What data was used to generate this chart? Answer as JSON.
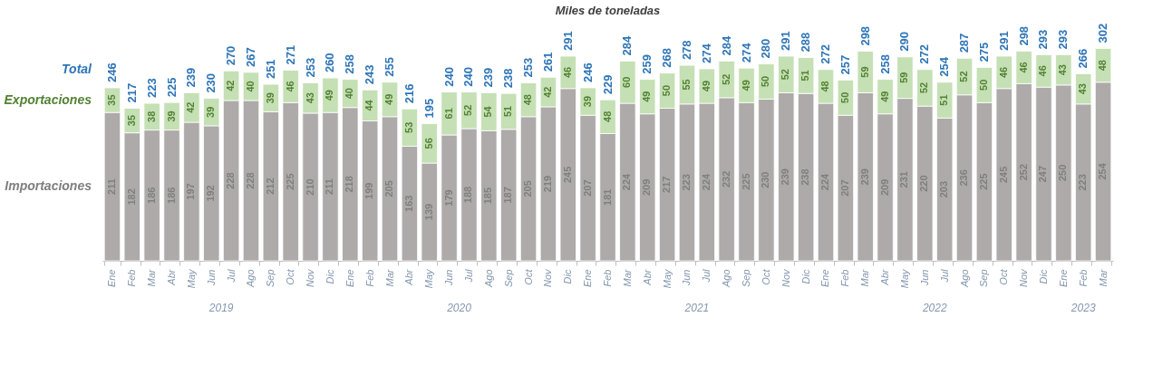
{
  "chart_data": {
    "type": "bar",
    "title": "Miles de toneladas",
    "stacked": true,
    "data_labels": true,
    "legend": "left",
    "grid": false,
    "categories": [
      "Ene",
      "Feb",
      "Mar",
      "Abr",
      "May",
      "Jun",
      "Jul",
      "Ago",
      "Sep",
      "Oct",
      "Nov",
      "Dic",
      "Ene",
      "Feb",
      "Mar",
      "Abr",
      "May",
      "Jun",
      "Jul",
      "Ago",
      "Sep",
      "Oct",
      "Nov",
      "Dic",
      "Ene",
      "Feb",
      "Mar",
      "Abr",
      "May",
      "Jun",
      "Jul",
      "Ago",
      "Sep",
      "Oct",
      "Nov",
      "Dic",
      "Ene",
      "Feb",
      "Mar",
      "Abr",
      "May",
      "Jun",
      "Jul",
      "Ago",
      "Sep",
      "Oct",
      "Nov",
      "Dic",
      "Ene",
      "Feb",
      "Mar"
    ],
    "series": [
      {
        "name": "Importaciones",
        "color": "#aeaaaa",
        "values": [
          211,
          182,
          186,
          186,
          197,
          192,
          228,
          228,
          212,
          225,
          210,
          211,
          218,
          199,
          205,
          163,
          139,
          179,
          188,
          185,
          187,
          205,
          219,
          245,
          207,
          181,
          224,
          209,
          217,
          223,
          224,
          232,
          225,
          230,
          239,
          238,
          224,
          207,
          239,
          209,
          231,
          220,
          203,
          236,
          225,
          245,
          252,
          247,
          250,
          223,
          254
        ]
      },
      {
        "name": "Exportaciones",
        "color": "#c5e0b4",
        "values": [
          35,
          35,
          38,
          39,
          42,
          39,
          42,
          40,
          39,
          46,
          43,
          49,
          40,
          44,
          49,
          53,
          56,
          61,
          52,
          54,
          51,
          48,
          42,
          46,
          39,
          48,
          60,
          49,
          50,
          55,
          49,
          52,
          49,
          50,
          52,
          51,
          48,
          50,
          59,
          49,
          59,
          52,
          51,
          52,
          50,
          46,
          46,
          46,
          43,
          43,
          48
        ]
      }
    ],
    "totals": [
      "246",
      "217",
      "223",
      "225",
      "239",
      "230",
      "270",
      "267",
      "251",
      "271",
      "253",
      "260",
      "258",
      "243",
      "255",
      "216",
      "195",
      "240",
      "240",
      "239",
      "238",
      "253",
      "261",
      "291",
      "246",
      "229",
      "284",
      "259",
      "268",
      "278",
      "274",
      "284",
      "274",
      "280",
      "291",
      "288",
      "272",
      "257",
      "298",
      "258",
      "290",
      "272",
      "254",
      "287",
      "275",
      "291",
      "298",
      "293",
      "293",
      "266",
      "302"
    ],
    "annotations": [
      "Total",
      "2019",
      "2020",
      "2021",
      "2022",
      "2023"
    ]
  }
}
